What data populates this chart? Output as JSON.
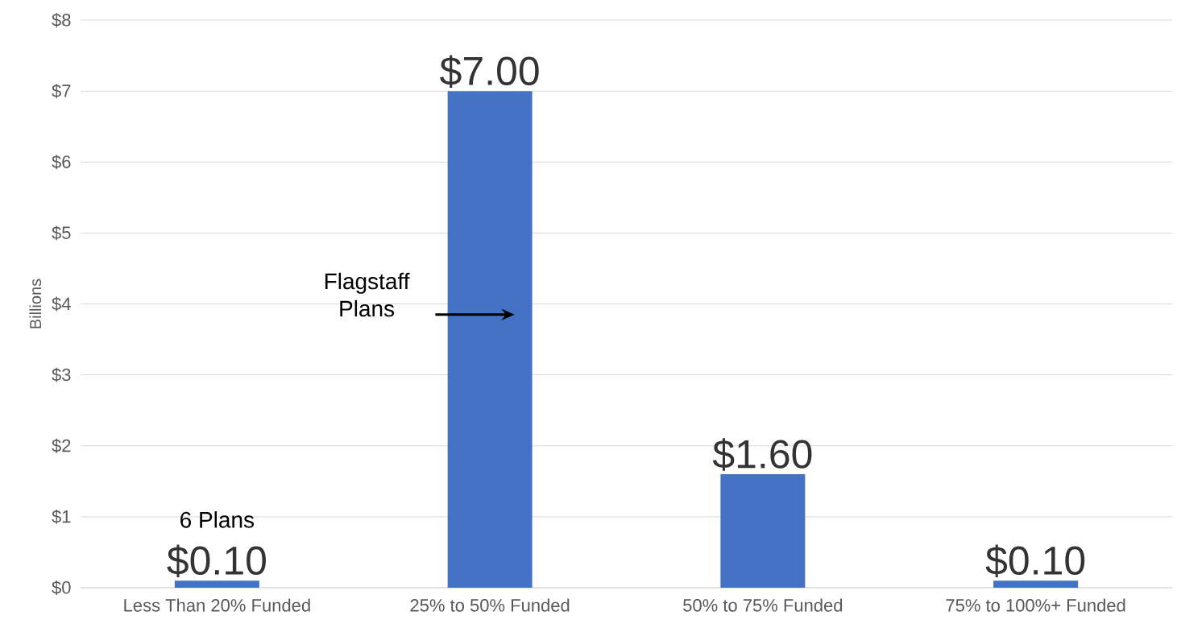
{
  "chart_data": {
    "type": "bar",
    "ylabel": "Billions",
    "categories": [
      "Less Than 20% Funded",
      "25% to 50% Funded",
      "50% to 75% Funded",
      "75% to 100%+ Funded"
    ],
    "values": [
      0.1,
      7.0,
      1.6,
      0.1
    ],
    "color": "#4472c4",
    "value_labels": [
      "$0.10",
      "$7.00",
      "$1.60",
      "$0.10"
    ],
    "ylim": [
      0,
      8
    ],
    "yticks": [
      {
        "value": 0,
        "label": "$0"
      },
      {
        "value": 1,
        "label": "$1"
      },
      {
        "value": 2,
        "label": "$2"
      },
      {
        "value": 3,
        "label": "$3"
      },
      {
        "value": 4,
        "label": "$4"
      },
      {
        "value": 5,
        "label": "$5"
      },
      {
        "value": 6,
        "label": "$6"
      },
      {
        "value": 7,
        "label": "$7"
      },
      {
        "value": 8,
        "label": "$8"
      }
    ],
    "grid": "y",
    "annotations": [
      {
        "text": "6 Plans",
        "x": "Less Than 20% Funded",
        "y": 0.1
      },
      "Flagstaff Plans"
    ]
  }
}
